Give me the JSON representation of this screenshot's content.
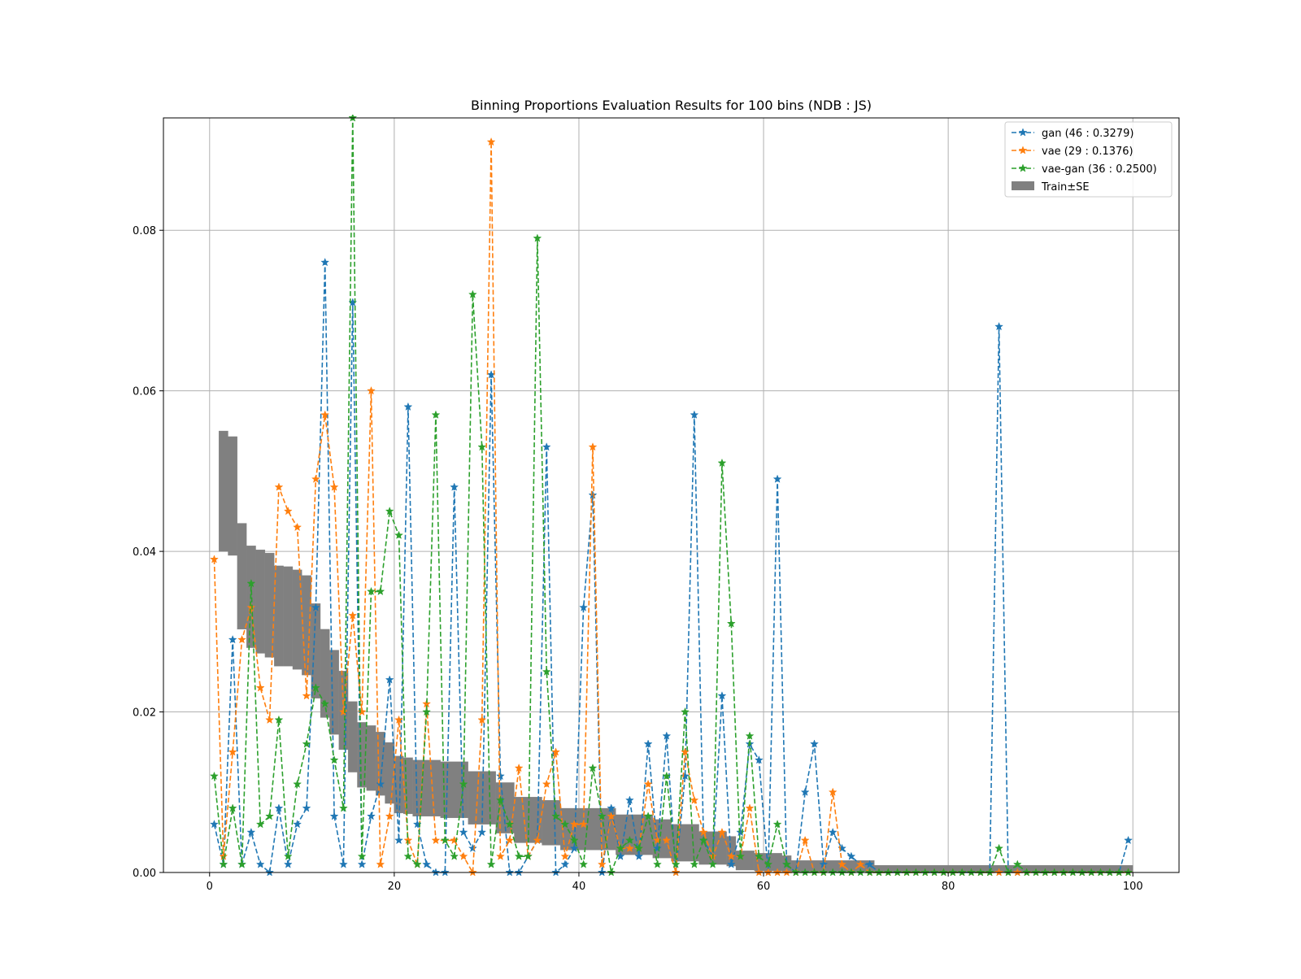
{
  "chart_data": {
    "type": "line",
    "title": "Binning Proportions Evaluation Results for 100 bins (NDB : JS)",
    "xlabel": "",
    "ylabel": "",
    "xlim": [
      -5,
      105
    ],
    "ylim": [
      0,
      0.094
    ],
    "xticks": [
      0,
      20,
      40,
      60,
      80,
      100
    ],
    "xtick_labels": [
      "0",
      "20",
      "40",
      "60",
      "80",
      "100"
    ],
    "yticks": [
      0,
      0.02,
      0.04,
      0.06,
      0.08
    ],
    "ytick_labels": [
      "0.00",
      "0.02",
      "0.04",
      "0.06",
      "0.08"
    ],
    "grid": true,
    "legend_position": "top-right",
    "x": [
      0.5,
      1.5,
      2.5,
      3.5,
      4.5,
      5.5,
      6.5,
      7.5,
      8.5,
      9.5,
      10.5,
      11.5,
      12.5,
      13.5,
      14.5,
      15.5,
      16.5,
      17.5,
      18.5,
      19.5,
      20.5,
      21.5,
      22.5,
      23.5,
      24.5,
      25.5,
      26.5,
      27.5,
      28.5,
      29.5,
      30.5,
      31.5,
      32.5,
      33.5,
      34.5,
      35.5,
      36.5,
      37.5,
      38.5,
      39.5,
      40.5,
      41.5,
      42.5,
      43.5,
      44.5,
      45.5,
      46.5,
      47.5,
      48.5,
      49.5,
      50.5,
      51.5,
      52.5,
      53.5,
      54.5,
      55.5,
      56.5,
      57.5,
      58.5,
      59.5,
      60.5,
      61.5,
      62.5,
      63.5,
      64.5,
      65.5,
      66.5,
      67.5,
      68.5,
      69.5,
      70.5,
      71.5,
      72.5,
      73.5,
      74.5,
      75.5,
      76.5,
      77.5,
      78.5,
      79.5,
      80.5,
      81.5,
      82.5,
      83.5,
      84.5,
      85.5,
      86.5,
      87.5,
      88.5,
      89.5,
      90.5,
      91.5,
      92.5,
      93.5,
      94.5,
      95.5,
      96.5,
      97.5,
      98.5,
      99.5
    ],
    "series": [
      {
        "name": "gan (46 : 0.3279)",
        "color": "#1f77b4",
        "values": [
          0.006,
          0.001,
          0.029,
          0.001,
          0.005,
          0.001,
          0.0,
          0.008,
          0.001,
          0.006,
          0.008,
          0.033,
          0.076,
          0.007,
          0.001,
          0.071,
          0.001,
          0.007,
          0.011,
          0.024,
          0.004,
          0.058,
          0.006,
          0.001,
          0.0,
          0.0,
          0.048,
          0.005,
          0.003,
          0.005,
          0.062,
          0.012,
          0.0,
          0.0,
          0.002,
          0.004,
          0.053,
          0.0,
          0.001,
          0.003,
          0.033,
          0.047,
          0.0,
          0.008,
          0.002,
          0.009,
          0.002,
          0.016,
          0.003,
          0.017,
          0.0,
          0.012,
          0.057,
          0.004,
          0.002,
          0.022,
          0.001,
          0.005,
          0.016,
          0.014,
          0.0,
          0.049,
          0.001,
          0.0,
          0.01,
          0.016,
          0.001,
          0.005,
          0.003,
          0.002,
          0.001,
          0.001,
          0.0,
          0.0,
          0.0,
          0.0,
          0.0,
          0.0,
          0.0,
          0.0,
          0.0,
          0.0,
          0.0,
          0.0,
          0.0,
          0.068,
          0.0,
          0.0,
          0.0,
          0.0,
          0.0,
          0.0,
          0.0,
          0.0,
          0.0,
          0.0,
          0.0,
          0.0,
          0.0,
          0.004
        ]
      },
      {
        "name": "vae (29 : 0.1376)",
        "color": "#ff7f0e",
        "values": [
          0.039,
          0.002,
          0.015,
          0.029,
          0.033,
          0.023,
          0.019,
          0.048,
          0.045,
          0.043,
          0.022,
          0.049,
          0.057,
          0.048,
          0.02,
          0.032,
          0.02,
          0.06,
          0.001,
          0.007,
          0.019,
          0.004,
          0.001,
          0.021,
          0.004,
          0.004,
          0.004,
          0.002,
          0.0,
          0.019,
          0.091,
          0.002,
          0.004,
          0.013,
          0.002,
          0.004,
          0.011,
          0.015,
          0.002,
          0.006,
          0.006,
          0.053,
          0.001,
          0.007,
          0.003,
          0.003,
          0.003,
          0.011,
          0.004,
          0.004,
          0.0,
          0.015,
          0.009,
          0.005,
          0.002,
          0.005,
          0.002,
          0.002,
          0.008,
          0.0,
          0.0,
          0.0,
          0.0,
          0.0,
          0.004,
          0.0,
          0.0,
          0.01,
          0.001,
          0.0,
          0.001,
          0.0,
          0.0,
          0.0,
          0.0,
          0.0,
          0.0,
          0.0,
          0.0,
          0.0,
          0.0,
          0.0,
          0.0,
          0.0,
          0.0,
          0.0,
          0.0,
          0.0,
          0.0,
          0.0,
          0.0,
          0.0,
          0.0,
          0.0,
          0.0,
          0.0,
          0.0,
          0.0,
          0.0,
          0.0
        ]
      },
      {
        "name": "vae-gan (36 : 0.2500)",
        "color": "#2ca02c",
        "values": [
          0.012,
          0.001,
          0.008,
          0.001,
          0.036,
          0.006,
          0.007,
          0.019,
          0.002,
          0.011,
          0.016,
          0.023,
          0.021,
          0.014,
          0.008,
          0.094,
          0.002,
          0.035,
          0.035,
          0.045,
          0.042,
          0.002,
          0.001,
          0.02,
          0.057,
          0.004,
          0.002,
          0.011,
          0.072,
          0.053,
          0.001,
          0.009,
          0.006,
          0.002,
          0.002,
          0.079,
          0.025,
          0.007,
          0.006,
          0.004,
          0.001,
          0.013,
          0.007,
          0.0,
          0.003,
          0.004,
          0.003,
          0.007,
          0.001,
          0.012,
          0.001,
          0.02,
          0.001,
          0.004,
          0.001,
          0.051,
          0.031,
          0.002,
          0.017,
          0.002,
          0.001,
          0.006,
          0.001,
          0.0,
          0.0,
          0.0,
          0.0,
          0.0,
          0.0,
          0.0,
          0.0,
          0.0,
          0.0,
          0.0,
          0.0,
          0.0,
          0.0,
          0.0,
          0.0,
          0.0,
          0.0,
          0.0,
          0.0,
          0.0,
          0.0,
          0.003,
          0.0,
          0.001,
          0.0,
          0.0,
          0.0,
          0.0,
          0.0,
          0.0,
          0.0,
          0.0,
          0.0,
          0.0,
          0.0,
          0.0
        ]
      }
    ],
    "band": {
      "name": "Train±SE",
      "color": "#808080",
      "bins": [
        {
          "x0": 1,
          "x1": 2,
          "low": 0.04,
          "high": 0.055
        },
        {
          "x0": 2,
          "x1": 3,
          "low": 0.0395,
          "high": 0.0543
        },
        {
          "x0": 3,
          "x1": 4,
          "low": 0.0303,
          "high": 0.0435
        },
        {
          "x0": 4,
          "x1": 5,
          "low": 0.028,
          "high": 0.0407
        },
        {
          "x0": 5,
          "x1": 6,
          "low": 0.0273,
          "high": 0.0402
        },
        {
          "x0": 6,
          "x1": 7,
          "low": 0.0268,
          "high": 0.0398
        },
        {
          "x0": 7,
          "x1": 8,
          "low": 0.0257,
          "high": 0.0382
        },
        {
          "x0": 8,
          "x1": 9,
          "low": 0.0257,
          "high": 0.0381
        },
        {
          "x0": 9,
          "x1": 10,
          "low": 0.0253,
          "high": 0.0377
        },
        {
          "x0": 10,
          "x1": 11,
          "low": 0.0246,
          "high": 0.037
        },
        {
          "x0": 11,
          "x1": 12,
          "low": 0.0217,
          "high": 0.0335
        },
        {
          "x0": 12,
          "x1": 13,
          "low": 0.0193,
          "high": 0.0303
        },
        {
          "x0": 13,
          "x1": 14,
          "low": 0.0172,
          "high": 0.0277
        },
        {
          "x0": 14,
          "x1": 15,
          "low": 0.0153,
          "high": 0.0251
        },
        {
          "x0": 15,
          "x1": 16,
          "low": 0.0125,
          "high": 0.0213
        },
        {
          "x0": 16,
          "x1": 17,
          "low": 0.0106,
          "high": 0.0187
        },
        {
          "x0": 17,
          "x1": 18,
          "low": 0.0102,
          "high": 0.0183
        },
        {
          "x0": 18,
          "x1": 19,
          "low": 0.0096,
          "high": 0.0175
        },
        {
          "x0": 19,
          "x1": 20,
          "low": 0.0086,
          "high": 0.0162
        },
        {
          "x0": 20,
          "x1": 21,
          "low": 0.0074,
          "high": 0.0145
        },
        {
          "x0": 21,
          "x1": 22,
          "low": 0.0073,
          "high": 0.0143
        },
        {
          "x0": 22,
          "x1": 25,
          "low": 0.007,
          "high": 0.014
        },
        {
          "x0": 25,
          "x1": 28,
          "low": 0.0068,
          "high": 0.0138
        },
        {
          "x0": 28,
          "x1": 31,
          "low": 0.006,
          "high": 0.0126
        },
        {
          "x0": 31,
          "x1": 33,
          "low": 0.0049,
          "high": 0.0112
        },
        {
          "x0": 33,
          "x1": 36,
          "low": 0.0037,
          "high": 0.0094
        },
        {
          "x0": 36,
          "x1": 38,
          "low": 0.0034,
          "high": 0.009
        },
        {
          "x0": 38,
          "x1": 44,
          "low": 0.0028,
          "high": 0.008
        },
        {
          "x0": 44,
          "x1": 48,
          "low": 0.0022,
          "high": 0.0072
        },
        {
          "x0": 48,
          "x1": 50,
          "low": 0.0018,
          "high": 0.0066
        },
        {
          "x0": 50,
          "x1": 53,
          "low": 0.0014,
          "high": 0.006
        },
        {
          "x0": 53,
          "x1": 56,
          "low": 0.001,
          "high": 0.0051
        },
        {
          "x0": 56,
          "x1": 57,
          "low": 0.0008,
          "high": 0.0045
        },
        {
          "x0": 57,
          "x1": 59,
          "low": 0.0003,
          "high": 0.0027
        },
        {
          "x0": 59,
          "x1": 62,
          "low": 0.0002,
          "high": 0.0024
        },
        {
          "x0": 62,
          "x1": 63,
          "low": 0.0001,
          "high": 0.0021
        },
        {
          "x0": 63,
          "x1": 72,
          "low": 0.0001,
          "high": 0.0015
        },
        {
          "x0": 72,
          "x1": 100,
          "low": 0.0,
          "high": 0.0009
        }
      ]
    }
  }
}
